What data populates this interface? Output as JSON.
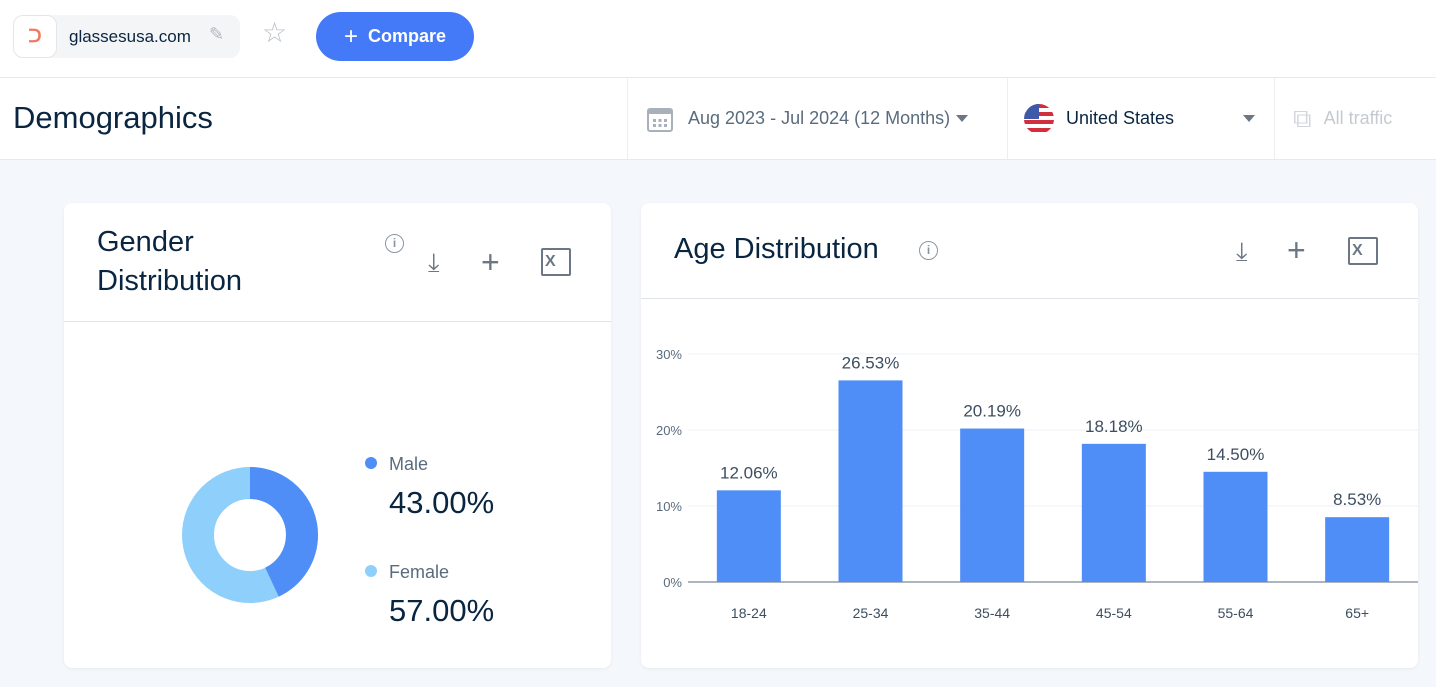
{
  "header": {
    "site": "glassesusa.com",
    "compare_label": "Compare"
  },
  "toolbar": {
    "page_title": "Demographics",
    "date_range": "Aug 2023 - Jul 2024 (12 Months)",
    "country": "United States",
    "traffic": "All traffic"
  },
  "gender": {
    "title_line1": "Gender",
    "title_line2": "Distribution",
    "items": [
      {
        "label": "Male",
        "value": "43.00%",
        "pct": 43,
        "color": "#4f8ef7"
      },
      {
        "label": "Female",
        "value": "57.00%",
        "pct": 57,
        "color": "#8ecffc"
      }
    ]
  },
  "age": {
    "title": "Age Distribution"
  },
  "chart_data": {
    "type": "bar",
    "categories": [
      "18-24",
      "25-34",
      "35-44",
      "45-54",
      "55-64",
      "65+"
    ],
    "values": [
      12.06,
      26.53,
      20.19,
      18.18,
      14.5,
      8.53
    ],
    "data_labels": [
      "12.06%",
      "26.53%",
      "20.19%",
      "18.18%",
      "14.50%",
      "8.53%"
    ],
    "yticks": [
      "0%",
      "10%",
      "20%",
      "30%"
    ],
    "ylim": [
      0,
      30
    ],
    "grid": true,
    "color": "#4f8ef7"
  }
}
